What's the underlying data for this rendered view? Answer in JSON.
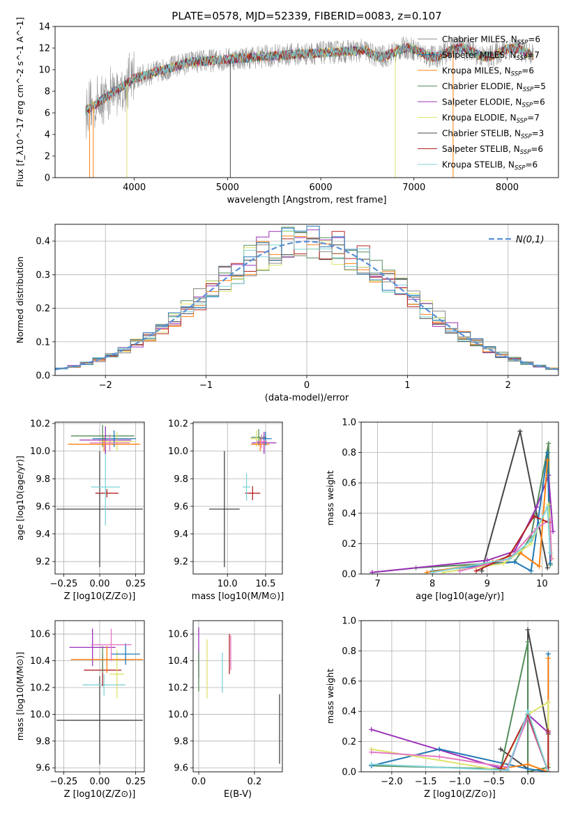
{
  "figure": {
    "title": "PLATE=0578, MJD=52339, FIBERID=0083, z=0.107"
  },
  "colors": {
    "chabrier_miles": "#888888",
    "salpeter_miles": "#1f77b4",
    "kroupa_miles": "#ff7f0e",
    "chabrier_elodie": "#548c5a",
    "salpeter_elodie": "#9b30b8",
    "kroupa_elodie": "#dde36a",
    "chabrier_stelib": "#444444",
    "salpeter_stelib": "#b22222",
    "kroupa_stelib": "#7fd3d8",
    "pink": "#e377c2",
    "gauss": "#5b8fd6"
  },
  "chart_data": [
    {
      "id": "spectrum",
      "type": "line",
      "xlabel": "wavelength [Angstrom, rest frame]",
      "ylabel": "Flux [f_λ10^-17 erg cm^-2 s^-1 A^-1]",
      "xlim": [
        3150,
        8550
      ],
      "ylim": [
        0,
        14
      ],
      "xticks": [
        "4000",
        "5000",
        "6000",
        "7000",
        "8000"
      ],
      "yticks": [
        "0",
        "2",
        "4",
        "6",
        "8",
        "10",
        "12",
        "14"
      ],
      "legend_position": "right",
      "legend": [
        {
          "model": "Chabrier MILES",
          "n": "6",
          "color_key": "chabrier_miles"
        },
        {
          "model": "Salpeter MILES",
          "n": "7",
          "color_key": "salpeter_miles"
        },
        {
          "model": "Kroupa MILES",
          "n": "6",
          "color_key": "kroupa_miles"
        },
        {
          "model": "Chabrier ELODIE",
          "n": "5",
          "color_key": "chabrier_elodie"
        },
        {
          "model": "Salpeter ELODIE",
          "n": "6",
          "color_key": "salpeter_elodie"
        },
        {
          "model": "Kroupa ELODIE",
          "n": "7",
          "color_key": "kroupa_elodie"
        },
        {
          "model": "Chabrier STELIB",
          "n": "3",
          "color_key": "chabrier_stelib"
        },
        {
          "model": "Salpeter STELIB",
          "n": "6",
          "color_key": "salpeter_stelib"
        },
        {
          "model": "Kroupa STELIB",
          "n": "6",
          "color_key": "kroupa_stelib"
        }
      ],
      "series_shape": {
        "x_start": 3480,
        "x_end": 8280,
        "start_flux": 6.2,
        "plateau_flux": 11.6
      }
    },
    {
      "id": "residuals",
      "type": "histogram",
      "xlabel": "(data-model)/error",
      "ylabel": "Normed distribution",
      "xlim": [
        -2.5,
        2.5
      ],
      "ylim": [
        0,
        0.45
      ],
      "xticks": [
        "−2",
        "−1",
        "0",
        "1",
        "2"
      ],
      "yticks": [
        "0.0",
        "0.1",
        "0.2",
        "0.3",
        "0.4"
      ],
      "legend_position": "top-right",
      "reference_curve": "N(0,1)",
      "bins": 40
    },
    {
      "id": "age_vs_Z",
      "type": "errorbar",
      "xlabel": "Z [log10(Z/Z⊙)]",
      "ylabel": "age [log10(age/yr)]",
      "xlim": [
        -0.31,
        0.31
      ],
      "ylim": [
        9.11,
        10.21
      ],
      "xticks": [
        "−0.25",
        "0.00",
        "0.25"
      ],
      "yticks": [
        "9.2",
        "9.4",
        "9.6",
        "9.8",
        "10.0",
        "10.2"
      ],
      "points": [
        {
          "x": 0.0,
          "y": 9.58,
          "xerr": 0.3,
          "yerr": 0.42,
          "color_key": "chabrier_stelib"
        },
        {
          "x": 0.05,
          "y": 9.695,
          "xerr": 0.08,
          "yerr": 0.03,
          "color_key": "salpeter_stelib"
        },
        {
          "x": 0.04,
          "y": 9.74,
          "xerr": 0.1,
          "yerr": 0.28,
          "color_key": "kroupa_stelib"
        },
        {
          "x": 0.02,
          "y": 10.11,
          "xerr": 0.22,
          "yerr": 0.08,
          "color_key": "chabrier_elodie"
        },
        {
          "x": 0.04,
          "y": 10.08,
          "xerr": 0.18,
          "yerr": 0.1,
          "color_key": "salpeter_elodie"
        },
        {
          "x": 0.12,
          "y": 10.07,
          "xerr": 0.12,
          "yerr": 0.07,
          "color_key": "kroupa_elodie"
        },
        {
          "x": 0.03,
          "y": 10.05,
          "xerr": 0.25,
          "yerr": 0.05,
          "color_key": "kroupa_miles"
        },
        {
          "x": 0.1,
          "y": 10.09,
          "xerr": 0.15,
          "yerr": 0.06,
          "color_key": "salpeter_miles"
        },
        {
          "x": 0.07,
          "y": 10.06,
          "xerr": 0.14,
          "yerr": 0.06,
          "color_key": "pink"
        }
      ]
    },
    {
      "id": "age_vs_mass",
      "type": "errorbar",
      "xlabel": "mass [log10(M/M⊙)]",
      "ylabel": "",
      "xlim": [
        9.55,
        10.72
      ],
      "ylim": [
        9.11,
        10.21
      ],
      "xticks": [
        "10.0",
        "10.5"
      ],
      "yticks": [
        "9.2",
        "9.4",
        "9.6",
        "9.8",
        "10.0",
        "10.2"
      ],
      "points": [
        {
          "x": 9.96,
          "y": 9.58,
          "xerr": 0.2,
          "yerr": 0.42,
          "color_key": "chabrier_stelib"
        },
        {
          "x": 10.33,
          "y": 9.695,
          "xerr": 0.1,
          "yerr": 0.05,
          "color_key": "salpeter_stelib"
        },
        {
          "x": 10.25,
          "y": 9.74,
          "xerr": 0.05,
          "yerr": 0.1,
          "color_key": "kroupa_stelib"
        },
        {
          "x": 10.41,
          "y": 10.1,
          "xerr": 0.1,
          "yerr": 0.06,
          "color_key": "chabrier_elodie"
        },
        {
          "x": 10.48,
          "y": 10.06,
          "xerr": 0.16,
          "yerr": 0.08,
          "color_key": "salpeter_elodie"
        },
        {
          "x": 10.38,
          "y": 10.09,
          "xerr": 0.08,
          "yerr": 0.06,
          "color_key": "kroupa_elodie"
        },
        {
          "x": 10.43,
          "y": 10.05,
          "xerr": 0.12,
          "yerr": 0.05,
          "color_key": "kroupa_miles"
        },
        {
          "x": 10.5,
          "y": 10.09,
          "xerr": 0.08,
          "yerr": 0.05,
          "color_key": "salpeter_miles"
        },
        {
          "x": 10.45,
          "y": 10.07,
          "xerr": 0.07,
          "yerr": 0.05,
          "color_key": "pink"
        }
      ]
    },
    {
      "id": "mass_weight_vs_age",
      "type": "line",
      "xlabel": "age [log10(age/yr)]",
      "ylabel": "mass weight",
      "xlim": [
        6.7,
        10.3
      ],
      "ylim": [
        0,
        1
      ],
      "xticks": [
        "7",
        "8",
        "9",
        "10"
      ],
      "yticks": [
        "0.0",
        "0.2",
        "0.4",
        "0.6",
        "0.8",
        "1.0"
      ],
      "series": [
        {
          "color_key": "chabrier_stelib",
          "x": [
            8.9,
            9.6,
            10.1
          ],
          "y": [
            0.02,
            0.94,
            0.04
          ]
        },
        {
          "color_key": "chabrier_elodie",
          "x": [
            6.9,
            7.7,
            9.5,
            9.8,
            10.12,
            10.15
          ],
          "y": [
            0.01,
            0.04,
            0.08,
            0.25,
            0.86,
            0.06
          ]
        },
        {
          "color_key": "salpeter_elodie",
          "x": [
            6.9,
            9.0,
            9.5,
            9.9,
            10.12,
            10.2
          ],
          "y": [
            0.01,
            0.09,
            0.15,
            0.44,
            0.65,
            0.28
          ]
        },
        {
          "color_key": "salpeter_miles",
          "x": [
            8.0,
            9.5,
            9.8,
            10.1,
            10.15
          ],
          "y": [
            0.02,
            0.08,
            0.02,
            0.8,
            0.07
          ]
        },
        {
          "color_key": "kroupa_miles",
          "x": [
            7.9,
            9.1,
            9.6,
            9.95,
            10.1
          ],
          "y": [
            0.01,
            0.08,
            0.14,
            0.05,
            0.75
          ]
        },
        {
          "color_key": "kroupa_elodie",
          "x": [
            8.2,
            9.3,
            9.8,
            10.12,
            10.18
          ],
          "y": [
            0.01,
            0.07,
            0.2,
            0.46,
            0.1
          ]
        },
        {
          "color_key": "pink",
          "x": [
            8.5,
            9.4,
            9.9,
            10.15,
            10.17
          ],
          "y": [
            0.02,
            0.1,
            0.3,
            0.36,
            0.1
          ]
        },
        {
          "color_key": "salpeter_stelib",
          "x": [
            8.8,
            9.4,
            9.85,
            10.12
          ],
          "y": [
            0.02,
            0.12,
            0.38,
            0.34
          ]
        },
        {
          "color_key": "kroupa_stelib",
          "x": [
            8.0,
            9.4,
            9.8,
            10.1,
            10.15
          ],
          "y": [
            0.01,
            0.1,
            0.22,
            0.44,
            0.14
          ]
        }
      ]
    },
    {
      "id": "mass_vs_Z",
      "type": "errorbar",
      "xlabel": "Z [log10(Z/Z⊙)]",
      "ylabel": "mass [log10(M/M⊙)]",
      "xlim": [
        -0.31,
        0.31
      ],
      "ylim": [
        9.57,
        10.7
      ],
      "xticks": [
        "−0.25",
        "0.00",
        "0.25"
      ],
      "yticks": [
        "9.6",
        "9.8",
        "10.0",
        "10.2",
        "10.4",
        "10.6"
      ],
      "points": [
        {
          "x": 0.0,
          "y": 9.955,
          "xerr": 0.3,
          "yerr": 0.33,
          "color_key": "chabrier_stelib"
        },
        {
          "x": 0.03,
          "y": 10.22,
          "xerr": 0.15,
          "yerr": 0.08,
          "color_key": "kroupa_stelib"
        },
        {
          "x": 0.02,
          "y": 10.33,
          "xerr": 0.13,
          "yerr": 0.12,
          "color_key": "salpeter_stelib"
        },
        {
          "x": 0.02,
          "y": 10.41,
          "xerr": 0.22,
          "yerr": 0.1,
          "color_key": "chabrier_elodie"
        },
        {
          "x": -0.05,
          "y": 10.5,
          "xerr": 0.16,
          "yerr": 0.14,
          "color_key": "salpeter_elodie"
        },
        {
          "x": 0.12,
          "y": 10.3,
          "xerr": 0.05,
          "yerr": 0.18,
          "color_key": "kroupa_elodie"
        },
        {
          "x": 0.05,
          "y": 10.41,
          "xerr": 0.25,
          "yerr": 0.1,
          "color_key": "kroupa_miles"
        },
        {
          "x": 0.18,
          "y": 10.45,
          "xerr": 0.1,
          "yerr": 0.08,
          "color_key": "salpeter_miles"
        },
        {
          "x": 0.08,
          "y": 10.52,
          "xerr": 0.14,
          "yerr": 0.12,
          "color_key": "pink"
        }
      ]
    },
    {
      "id": "mass_vs_ebv",
      "type": "errorbar",
      "xlabel": "E(B-V)",
      "ylabel": "",
      "xlim": [
        -0.02,
        0.3
      ],
      "ylim": [
        9.57,
        10.7
      ],
      "xticks": [
        "0.0",
        "0.2"
      ],
      "yticks": [
        "9.6",
        "9.8",
        "10.0",
        "10.2",
        "10.4",
        "10.6"
      ],
      "points": [
        {
          "x": 0.29,
          "y": 9.89,
          "xerr": 0,
          "yerr": 0.26,
          "color_key": "chabrier_stelib"
        },
        {
          "x": 0.0,
          "y": 10.46,
          "xerr": 0,
          "yerr": 0.19,
          "color_key": "salpeter_elodie"
        },
        {
          "x": 0.0,
          "y": 10.32,
          "xerr": 0,
          "yerr": 0.15,
          "color_key": "chabrier_elodie"
        },
        {
          "x": 0.03,
          "y": 10.34,
          "xerr": 0,
          "yerr": 0.22,
          "color_key": "kroupa_elodie"
        },
        {
          "x": 0.085,
          "y": 10.31,
          "xerr": 0,
          "yerr": 0.15,
          "color_key": "kroupa_stelib"
        },
        {
          "x": 0.11,
          "y": 10.45,
          "xerr": 0,
          "yerr": 0.15,
          "color_key": "salpeter_stelib"
        },
        {
          "x": 0.115,
          "y": 10.46,
          "xerr": 0,
          "yerr": 0.13,
          "color_key": "pink"
        }
      ]
    },
    {
      "id": "mass_weight_vs_Z",
      "type": "line",
      "xlabel": "Z [log10(Z/Z⊙)]",
      "ylabel": "mass weight",
      "xlim": [
        -2.45,
        0.45
      ],
      "ylim": [
        0,
        1
      ],
      "xticks": [
        "−2.0",
        "−1.5",
        "−1.0",
        "−0.5",
        "0.0"
      ],
      "yticks": [
        "0.0",
        "0.2",
        "0.4",
        "0.6",
        "0.8",
        "1.0"
      ],
      "series": [
        {
          "color_key": "chabrier_stelib",
          "x": [
            -0.4,
            0.0,
            0.0,
            0.3
          ],
          "y": [
            0.15,
            0.02,
            0.94,
            0.25
          ]
        },
        {
          "color_key": "chabrier_elodie",
          "x": [
            -2.3,
            -0.4,
            0.0,
            0.0,
            0.3
          ],
          "y": [
            0.04,
            0.02,
            0.86,
            0.0,
            0.03
          ]
        },
        {
          "color_key": "salpeter_elodie",
          "x": [
            -2.3,
            -0.3,
            0.0,
            0.3,
            0.3
          ],
          "y": [
            0.28,
            0.01,
            0.38,
            0.26,
            0.0
          ]
        },
        {
          "color_key": "salpeter_miles",
          "x": [
            -2.3,
            -1.3,
            0.0,
            0.3,
            0.3
          ],
          "y": [
            0.04,
            0.15,
            0.02,
            0.0,
            0.78
          ]
        },
        {
          "color_key": "kroupa_miles",
          "x": [
            -0.4,
            0.0,
            0.3,
            0.3
          ],
          "y": [
            0.02,
            0.05,
            0.0,
            0.75
          ]
        },
        {
          "color_key": "kroupa_elodie",
          "x": [
            -2.3,
            -0.4,
            0.0,
            0.3,
            0.3
          ],
          "y": [
            0.15,
            0.01,
            0.38,
            0.46,
            0.05
          ]
        },
        {
          "color_key": "pink",
          "x": [
            -2.3,
            -1.3,
            -0.3,
            0.0,
            0.3
          ],
          "y": [
            0.13,
            0.1,
            0.03,
            0.36,
            0.0
          ]
        },
        {
          "color_key": "salpeter_stelib",
          "x": [
            -0.4,
            0.0,
            0.3,
            0.3
          ],
          "y": [
            0.02,
            0.38,
            0.0,
            0.27
          ]
        },
        {
          "color_key": "kroupa_stelib",
          "x": [
            -2.3,
            -0.3,
            0.0,
            0.3
          ],
          "y": [
            0.05,
            0.01,
            0.4,
            0.0
          ]
        }
      ]
    }
  ]
}
